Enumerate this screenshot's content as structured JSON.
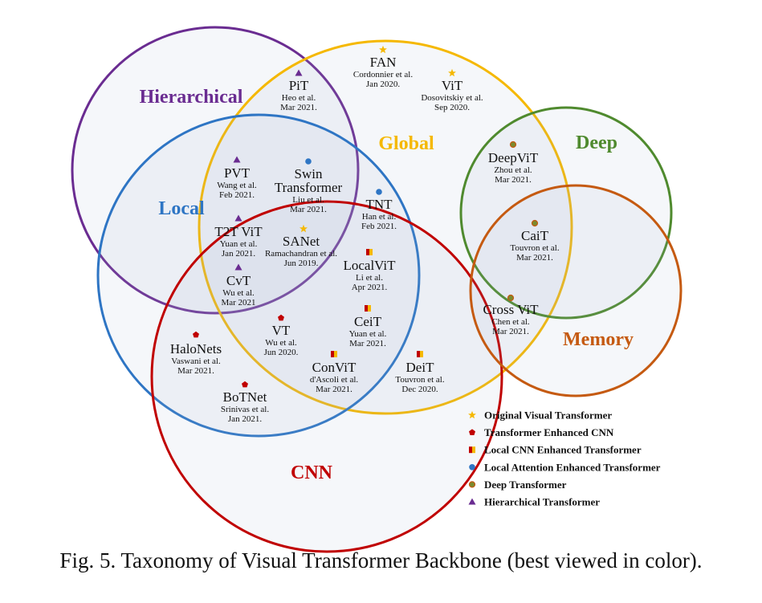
{
  "sets": [
    {
      "key": "hierarchical",
      "label": "Hierarchical",
      "color": "#6a2c91"
    },
    {
      "key": "global",
      "label": "Global",
      "color": "#f5b800"
    },
    {
      "key": "local",
      "label": "Local",
      "color": "#2e75c4"
    },
    {
      "key": "cnn",
      "label": "CNN",
      "color": "#c00000"
    },
    {
      "key": "deep",
      "label": "Deep",
      "color": "#4f8a2e"
    },
    {
      "key": "memory",
      "label": "Memory",
      "color": "#c55a11"
    }
  ],
  "models": [
    {
      "key": "fan",
      "name": "FAN",
      "meta": [
        "Cordonnier et al.",
        "Jan 2020."
      ],
      "marker": "star"
    },
    {
      "key": "vit",
      "name": "ViT",
      "meta": [
        "Dosovitskiy et al.",
        "Sep 2020."
      ],
      "marker": "star"
    },
    {
      "key": "pit",
      "name": "PiT",
      "meta": [
        "Heo et al.",
        "Mar 2021."
      ],
      "marker": "triangle"
    },
    {
      "key": "pvt",
      "name": "PVT",
      "meta": [
        "Wang et al.",
        "Feb 2021."
      ],
      "marker": "triangle"
    },
    {
      "key": "swin",
      "name": "Swin Transformer",
      "meta": [
        "Liu et al.",
        "Mar 2021."
      ],
      "marker": "circle-blue"
    },
    {
      "key": "tnt",
      "name": "TNT",
      "meta": [
        "Han et al.",
        "Feb 2021."
      ],
      "marker": "circle-blue"
    },
    {
      "key": "t2t",
      "name": "T2T ViT",
      "meta": [
        "Yuan et al.",
        "Jan 2021."
      ],
      "marker": "triangle"
    },
    {
      "key": "sanet",
      "name": "SANet",
      "meta": [
        "Ramachandran et al.",
        "Jun 2019."
      ],
      "marker": "star"
    },
    {
      "key": "localvit",
      "name": "LocalViT",
      "meta": [
        "Li et al.",
        "Apr 2021."
      ],
      "marker": "rect"
    },
    {
      "key": "cvt",
      "name": "CvT",
      "meta": [
        "Wu et al.",
        "Mar 2021"
      ],
      "marker": "triangle"
    },
    {
      "key": "ceit",
      "name": "CeiT",
      "meta": [
        "Yuan et al.",
        "Mar 2021."
      ],
      "marker": "rect"
    },
    {
      "key": "vt",
      "name": "VT",
      "meta": [
        "Wu et al.",
        "Jun 2020."
      ],
      "marker": "pentagon"
    },
    {
      "key": "halonets",
      "name": "HaloNets",
      "meta": [
        "Vaswani et al.",
        "Mar 2021."
      ],
      "marker": "pentagon"
    },
    {
      "key": "convit",
      "name": "ConViT",
      "meta": [
        "d'Ascoli et al.",
        "Mar 2021."
      ],
      "marker": "rect"
    },
    {
      "key": "deit",
      "name": "DeiT",
      "meta": [
        "Touvron et al.",
        "Dec 2020."
      ],
      "marker": "rect"
    },
    {
      "key": "botnet",
      "name": "BoTNet",
      "meta": [
        "Srinivas et al.",
        "Jan 2021."
      ],
      "marker": "pentagon"
    },
    {
      "key": "deepvit",
      "name": "DeepViT",
      "meta": [
        "Zhou et al.",
        "Mar 2021."
      ],
      "marker": "circle-olive"
    },
    {
      "key": "cait",
      "name": "CaiT",
      "meta": [
        "Touvron et al.",
        "Mar 2021."
      ],
      "marker": "circle-olive"
    },
    {
      "key": "crossvit",
      "name": "Cross ViT",
      "meta": [
        "Chen et al.",
        "Mar 2021."
      ],
      "marker": "circle-olive"
    }
  ],
  "legend": [
    {
      "label": "Original Visual Transformer",
      "marker": "star"
    },
    {
      "label": "Transformer Enhanced CNN",
      "marker": "pentagon"
    },
    {
      "label": "Local CNN Enhanced Transformer",
      "marker": "rect"
    },
    {
      "label": "Local Attention Enhanced Transformer",
      "marker": "circle-blue"
    },
    {
      "label": "Deep Transformer",
      "marker": "circle-olive"
    },
    {
      "label": "Hierarchical Transformer",
      "marker": "triangle"
    }
  ],
  "marker_colors": {
    "star": "#f5b800",
    "pentagon": "#c00000",
    "rect_left": "#c00000",
    "rect_right": "#f5b800",
    "circle-blue": "#2e75c4",
    "circle-olive_fill": "#7a8a2e",
    "circle-olive_stroke": "#c55a11",
    "triangle": "#6a2c91"
  },
  "caption": "Fig. 5.  Taxonomy of Visual Transformer Backbone (best viewed in color)."
}
